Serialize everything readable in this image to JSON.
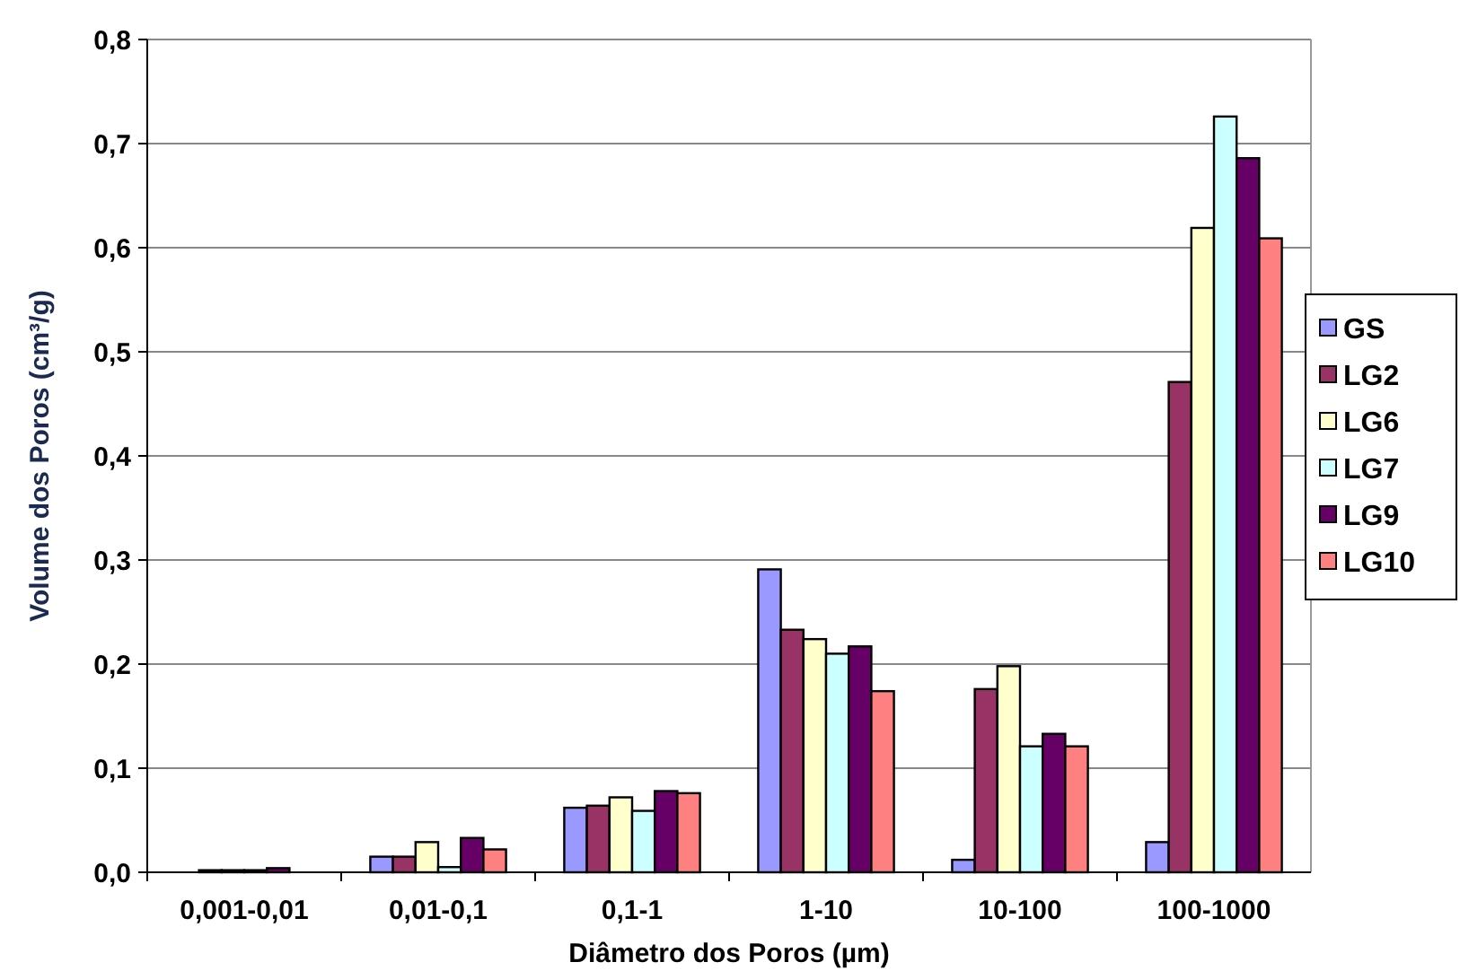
{
  "chart_data": {
    "type": "bar",
    "xlabel": "Diâmetro dos Poros (µm)",
    "ylabel": "Volume dos Poros (cm³/g)",
    "categories": [
      "0,001-0,01",
      "0,01-0,1",
      "0,1-1",
      "1-10",
      "10-100",
      "100-1000"
    ],
    "series": [
      {
        "name": "GS",
        "color": "#9999ff",
        "values": [
          0,
          0.015,
          0.062,
          0.291,
          0.012,
          0.029
        ]
      },
      {
        "name": "LG2",
        "color": "#993366",
        "values": [
          0.002,
          0.015,
          0.064,
          0.233,
          0.176,
          0.471
        ]
      },
      {
        "name": "LG6",
        "color": "#ffffcc",
        "values": [
          0.002,
          0.029,
          0.072,
          0.224,
          0.198,
          0.619
        ]
      },
      {
        "name": "LG7",
        "color": "#ccffff",
        "values": [
          0.002,
          0.005,
          0.059,
          0.21,
          0.121,
          0.726
        ]
      },
      {
        "name": "LG9",
        "color": "#660066",
        "values": [
          0.004,
          0.033,
          0.078,
          0.217,
          0.133,
          0.686
        ]
      },
      {
        "name": "LG10",
        "color": "#ff8080",
        "values": [
          0,
          0.022,
          0.076,
          0.174,
          0.121,
          0.609
        ]
      }
    ],
    "ylim": [
      0,
      0.8
    ],
    "yticks": [
      {
        "value": 0,
        "label": "0,0"
      },
      {
        "value": 0.1,
        "label": "0,1"
      },
      {
        "value": 0.2,
        "label": "0,2"
      },
      {
        "value": 0.3,
        "label": "0,3"
      },
      {
        "value": 0.4,
        "label": "0,4"
      },
      {
        "value": 0.5,
        "label": "0,5"
      },
      {
        "value": 0.6,
        "label": "0,6"
      },
      {
        "value": 0.7,
        "label": "0,7"
      },
      {
        "value": 0.8,
        "label": "0,8"
      }
    ],
    "grid": "y",
    "legend": "right"
  }
}
